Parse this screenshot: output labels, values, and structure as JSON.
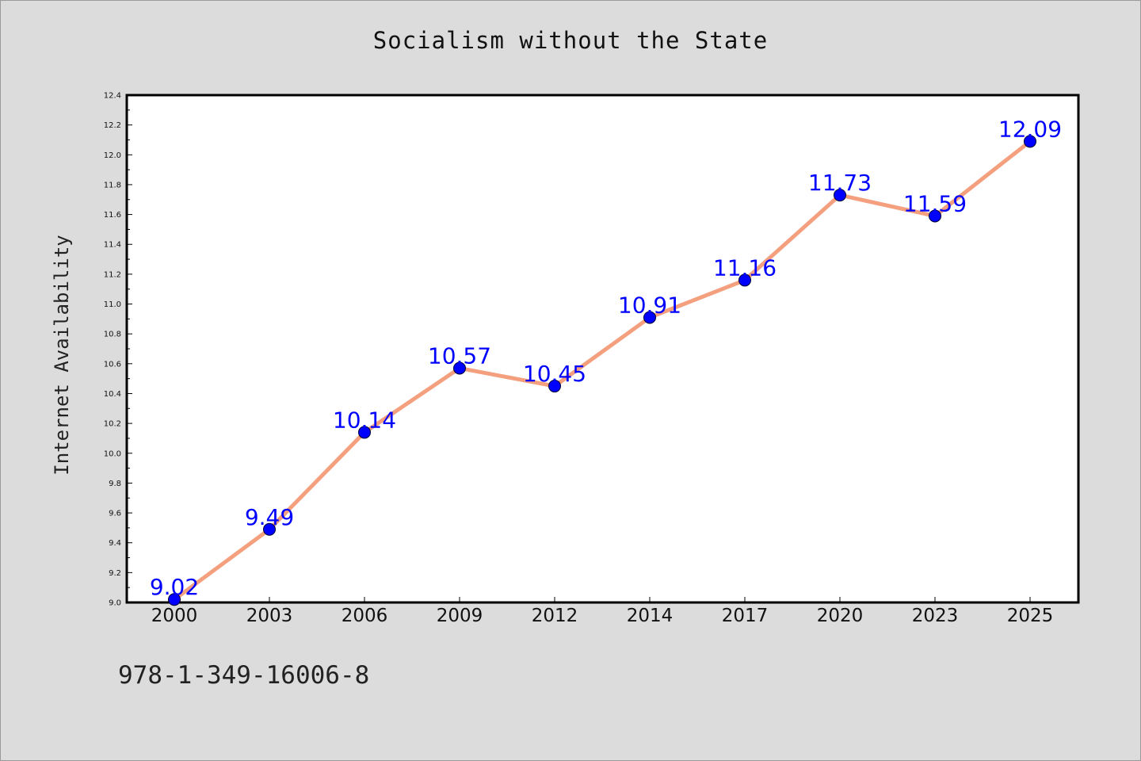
{
  "chart_data": {
    "type": "line",
    "title": "Socialism without the State",
    "xlabel": "",
    "ylabel": "Internet Availability",
    "categories": [
      "2000",
      "2003",
      "2006",
      "2009",
      "2012",
      "2014",
      "2017",
      "2020",
      "2023",
      "2025"
    ],
    "series": [
      {
        "values": [
          9.02,
          9.49,
          10.14,
          10.57,
          10.45,
          10.91,
          11.16,
          11.73,
          11.59,
          12.09
        ],
        "data_labels": [
          "9.02",
          "9.49",
          "10.14",
          "10.57",
          "10.45",
          "10.91",
          "11.16",
          "11.73",
          "11.59",
          "12.09"
        ],
        "line_color": "#f4a07e",
        "marker_color": "#0000ff"
      }
    ],
    "ylim": [
      9.0,
      12.4
    ],
    "y_ticks": [
      "9.0",
      "9.2",
      "9.4",
      "9.6",
      "9.8",
      "10.0",
      "10.2",
      "10.4",
      "10.6",
      "10.8",
      "11.0",
      "11.2",
      "11.4",
      "11.6",
      "11.8",
      "12.0",
      "12.2",
      "12.4"
    ],
    "grid": false,
    "label_color": "#0000ff"
  },
  "footer": {
    "isbn": "978-1-349-16006-8"
  }
}
